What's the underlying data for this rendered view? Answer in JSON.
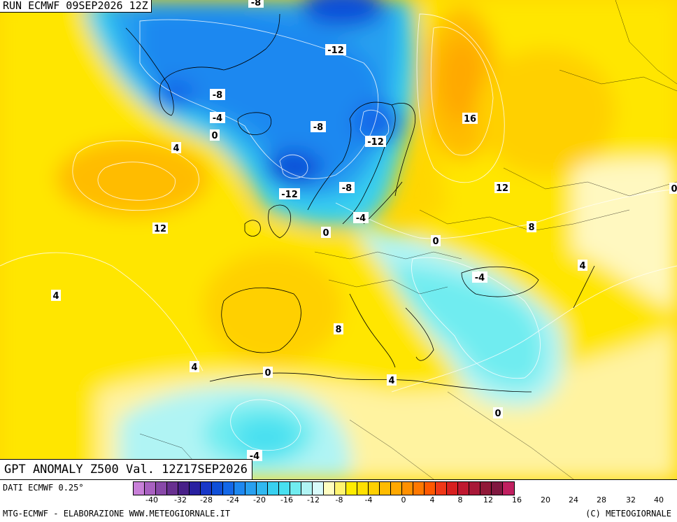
{
  "header": {
    "run_label": "RUN ECMWF 09SEP2026 12Z",
    "title": "GPT ANOMALY Z500 Val. 12Z17SEP2026"
  },
  "map_labels": [
    {
      "id": "lbl-1",
      "text": "-8"
    },
    {
      "id": "lbl-2",
      "text": "-12"
    },
    {
      "id": "lbl-3",
      "text": "-8"
    },
    {
      "id": "lbl-4",
      "text": "-4"
    },
    {
      "id": "lbl-5",
      "text": "0"
    },
    {
      "id": "lbl-6",
      "text": "-8"
    },
    {
      "id": "lbl-7",
      "text": "-12"
    },
    {
      "id": "lbl-8",
      "text": "4"
    },
    {
      "id": "lbl-9",
      "text": "-12"
    },
    {
      "id": "lbl-10",
      "text": "-8"
    },
    {
      "id": "lbl-11",
      "text": "-4"
    },
    {
      "id": "lbl-12",
      "text": "0"
    },
    {
      "id": "lbl-13",
      "text": "12"
    },
    {
      "id": "lbl-14",
      "text": "16"
    },
    {
      "id": "lbl-15",
      "text": "12"
    },
    {
      "id": "lbl-16",
      "text": "8"
    },
    {
      "id": "lbl-17",
      "text": "0"
    },
    {
      "id": "lbl-18",
      "text": "4"
    },
    {
      "id": "lbl-19",
      "text": "-4"
    },
    {
      "id": "lbl-20",
      "text": "4"
    },
    {
      "id": "lbl-21",
      "text": "8"
    },
    {
      "id": "lbl-22",
      "text": "4"
    },
    {
      "id": "lbl-23",
      "text": "0"
    },
    {
      "id": "lbl-24",
      "text": "4"
    },
    {
      "id": "lbl-25",
      "text": "0"
    },
    {
      "id": "lbl-26",
      "text": "-4"
    },
    {
      "id": "lbl-27",
      "text": "0"
    }
  ],
  "colorbar": {
    "colors": [
      "#c880d8",
      "#a860c0",
      "#8848a8",
      "#683090",
      "#482088",
      "#2820a0",
      "#1838c8",
      "#1050d8",
      "#1468e8",
      "#1e88f0",
      "#28a0f0",
      "#30b8f0",
      "#38d0f0",
      "#48e0f0",
      "#70ecf0",
      "#b0f4f4",
      "#d8fafa",
      "#fffdc0",
      "#fff470",
      "#ffec00",
      "#ffe000",
      "#ffd000",
      "#ffbc00",
      "#ffa800",
      "#ff9000",
      "#ff7800",
      "#ff5800",
      "#f03818",
      "#d82020",
      "#c01830",
      "#a81838",
      "#901838",
      "#801840",
      "#c02060"
    ],
    "ticks": [
      "-40",
      "-32",
      "-28",
      "-24",
      "-20",
      "-16",
      "-12",
      "-8",
      "-4",
      "0",
      "4",
      "8",
      "12",
      "16",
      "20",
      "24",
      "28",
      "32",
      "40"
    ]
  },
  "footer": {
    "dati": "DATI ECMWF 0.25°",
    "credit": "MTG-ECMWF - ELABORAZIONE WWW.METEOGIORNALE.IT",
    "copyright": "(C) METEOGIORNALE"
  },
  "palette": {
    "deep_blue": "#1468e8",
    "blue": "#28a0f0",
    "cyan": "#48e0f0",
    "light_cyan": "#b0f4f4",
    "pale": "#d8fafa",
    "pale_yellow": "#fffdc0",
    "yellow": "#ffec00",
    "gold": "#ffd000",
    "orange": "#ffbc00",
    "dark_orange": "#ffa800"
  }
}
